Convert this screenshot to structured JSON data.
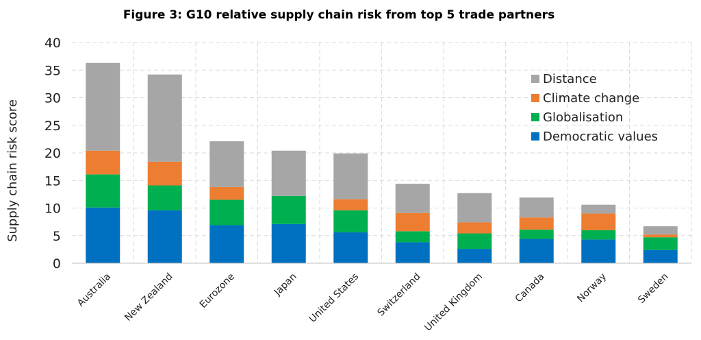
{
  "chart_data": {
    "type": "bar",
    "stacked": true,
    "title": "Figure 3: G10 relative supply chain risk from top 5 trade partners",
    "ylabel": "Supply chain risk score",
    "xlabel": "",
    "ylim": [
      0,
      40
    ],
    "yticks": [
      0,
      5,
      10,
      15,
      20,
      25,
      30,
      35,
      40
    ],
    "grid": true,
    "legend_position": "top-right",
    "categories": [
      "Australia",
      "New Zealand",
      "Eurozone",
      "Japan",
      "United States",
      "Switzerland",
      "United Kingdom",
      "Canada",
      "Norway",
      "Sweden"
    ],
    "series": [
      {
        "name": "Democratic values",
        "color": "#0070C0",
        "values": [
          10.1,
          9.6,
          6.9,
          7.1,
          5.6,
          3.8,
          2.6,
          4.4,
          4.3,
          2.4
        ]
      },
      {
        "name": "Globalisation",
        "color": "#00B050",
        "values": [
          6.0,
          4.5,
          4.6,
          5.1,
          4.0,
          2.0,
          2.8,
          1.7,
          1.7,
          2.3
        ]
      },
      {
        "name": "Climate change",
        "color": "#ED7D31",
        "values": [
          4.3,
          4.3,
          2.3,
          0.0,
          2.0,
          3.3,
          2.0,
          2.2,
          3.0,
          0.5
        ]
      },
      {
        "name": "Distance",
        "color": "#A6A6A6",
        "values": [
          15.9,
          15.8,
          8.3,
          8.2,
          8.3,
          5.3,
          5.3,
          3.6,
          1.6,
          1.5
        ]
      }
    ],
    "legend_order": [
      "Distance",
      "Climate change",
      "Globalisation",
      "Democratic values"
    ]
  }
}
